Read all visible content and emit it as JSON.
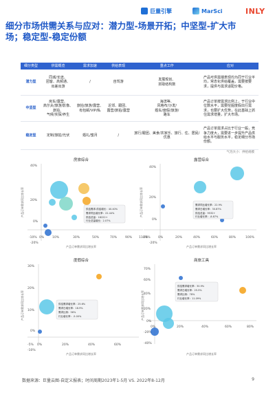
{
  "header": {
    "logo1": "巨量引擎",
    "logo2": "MarSci",
    "logo3": "INLY",
    "title": "细分市场供需关系与应对：潜力型-场景开拓；中坚型-扩大市场；稳定型-稳定份额"
  },
  "table": {
    "headers": [
      "细分类型",
      "供需概览",
      "需求加速",
      "供给表现",
      "重点工作",
      "应对"
    ],
    "rows": [
      {
        "type": "潜力型",
        "c1": "同城/长途、\n团客、高频通、\n出差出游",
        "c2": "/",
        "c3": "自驾游",
        "c4": "发展规划、\n抓取结构数",
        "c5": "产品可供需端表现均为同于行业平均，常态化供给覆盖，需要按要求，提供与需求适配价格。"
      },
      {
        "type": "中坚型",
        "c1": "房车/露营、\n高尔夫/旅游/影像、\n旅拍、\n气候/实探/养生",
        "c2": "旅拍/旅游/露营、\n有包邮/VIP/私",
        "c3": "近郊、跟团、\n露营/旅拍/露营",
        "c4": "海滨等、\n风格布/沙发/\n婚车/度假/旅游/\n路车",
        "c5": "产品订单按需求比例上，于行业中位数水平，需要挖掘度假出行需求，也要扩大优势，在此基础上抓住需求增量，扩大市场。"
      },
      {
        "type": "稳定型",
        "c1": "定制/旅拍/光伏",
        "c2": "婚礼/蜜月",
        "c3": "/",
        "c4": "旅行/跟团、美食/农家乐、旅行、住、居民/\n优惠",
        "c5": "产品订单需求占比于行业一般，竞争力度大，需要进一步提升产品供给水平与服务水平，稳定细分市场份额。"
      }
    ]
  },
  "note": "气泡大小：供给规模",
  "charts": [
    {
      "title": "房旅综合",
      "xlabel": "产品订单需求同比增长率",
      "ylabel": "产品订单需求同比增长率",
      "xticks": [
        "-10%",
        "0%",
        "10%",
        "30%",
        "50%",
        "70%",
        "90%",
        "110%"
      ],
      "yticks": [
        "-20%",
        "0%",
        "20%",
        "40%"
      ],
      "tooltip": [
        "供给需求-供给增长：40.40%",
        "需求同比增长率：22.44%",
        "供给总量：18222+",
        "行业总量增长：2.07%"
      ]
    },
    {
      "title": "露营综合",
      "xlabel": "产品订单需求同比增长率",
      "ylabel": "产品订单需求同比增长率",
      "xticks": [
        "-20%",
        "0%",
        "20%",
        "40%",
        "60%",
        "80%",
        "100%"
      ],
      "yticks": [
        "-20%",
        "0%",
        "20%",
        "40%"
      ],
      "tooltip": [
        "需求同比增长率：22.9%",
        "需求日增长率：30.87%",
        "供给总量：9532+",
        "行业增长率：-8.87%"
      ]
    },
    {
      "title": "度假综合",
      "xlabel": "产品订单需求同比增长率",
      "ylabel": "产品订单需求同比增长率",
      "xticks": [
        "-5%",
        "0%",
        "20%",
        "40%",
        "60%"
      ],
      "yticks": [
        "-10%",
        "0%",
        "10%",
        "20%",
        "30%"
      ],
      "tooltip": [
        "供给需求增长率：25.6%",
        "需求日增长率：18.9%",
        "需求比例：56%",
        "行业增长率：-5.00%"
      ]
    },
    {
      "title": "商旅工具",
      "xlabel": "产品订单需求同比增长率",
      "ylabel": "产品订单需求同比增长率",
      "xticks": [
        "0%",
        "20%",
        "40%",
        "60%",
        "80%"
      ],
      "yticks": [
        "-40%",
        "-20%",
        "0%",
        "20%",
        "40%",
        "60%",
        "70%"
      ],
      "tooltip": [
        "供给需求增长率：30.9%",
        "需求日增长率：25.5%",
        "需求比例：78%",
        "行业增长率：11.09%"
      ]
    }
  ],
  "footer": {
    "source": "数据来源：巨量云图-自定义报表；时间周期2023年1-5月 VS. 2022年8-12月",
    "page": "9"
  },
  "colors": {
    "blue": "#2f63cf",
    "bubble": "#5bc8e8",
    "bubble_dark": "#2a6fd0",
    "orange": "#f5a623"
  }
}
